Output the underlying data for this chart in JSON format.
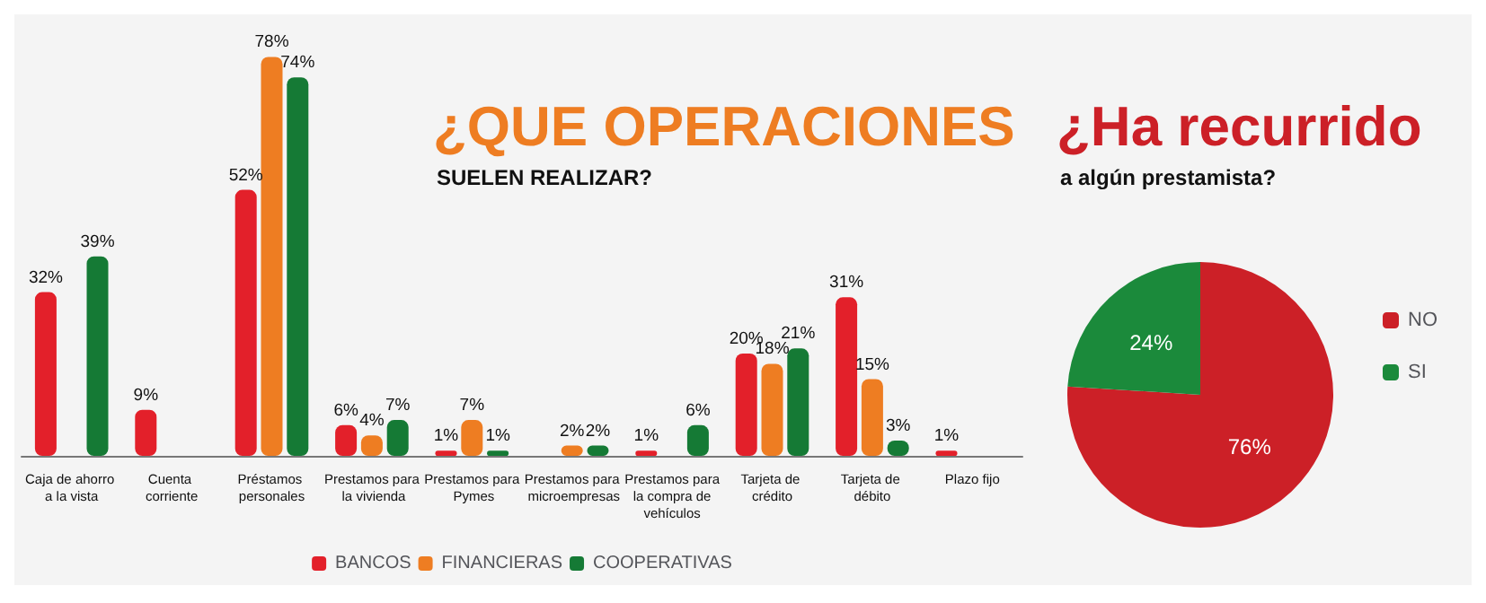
{
  "chart_data": [
    {
      "type": "bar",
      "title": "¿QUE OPERACIONES",
      "subtitle": "SUELEN REALIZAR?",
      "categories": [
        "Caja de ahorro a la vista",
        "Cuenta corriente",
        "Préstamos personales",
        "Prestamos para la vivienda",
        "Prestamos para Pymes",
        "Prestamos para microempresas",
        "Prestamos para la compra de vehículos",
        "Tarjeta de crédito",
        "Tarjeta de débito",
        "Plazo fijo"
      ],
      "series": [
        {
          "name": "BANCOS",
          "color": "#e3202a",
          "values": [
            32,
            9,
            52,
            6,
            1,
            null,
            1,
            20,
            31,
            1
          ],
          "value_labels": [
            "32%",
            "9%",
            "52%",
            "6%",
            "1%",
            null,
            "1%",
            "20%",
            "31%",
            "1%"
          ]
        },
        {
          "name": "FINANCIERAS",
          "color": "#ee7d22",
          "values": [
            null,
            null,
            78,
            4,
            7,
            2,
            null,
            18,
            15,
            null
          ],
          "value_labels": [
            null,
            null,
            "78%",
            "4%",
            "7%",
            "2%",
            null,
            "18%",
            "15%",
            null
          ]
        },
        {
          "name": "COOPERATIVAS",
          "color": "#157a35",
          "values": [
            39,
            null,
            74,
            7,
            1,
            2,
            6,
            21,
            3,
            null
          ],
          "value_labels": [
            "39%",
            null,
            "74%",
            "7%",
            "1%",
            "2%",
            "6%",
            "21%",
            "3%",
            null
          ]
        }
      ],
      "legend": "bottom"
    },
    {
      "type": "pie",
      "title": "¿Ha recurrido",
      "subtitle": "a algún prestamista?",
      "categories": [
        "NO",
        "SI"
      ],
      "values": [
        76,
        24
      ],
      "value_labels": [
        "76%",
        "24%"
      ],
      "colors": [
        "#cc2027",
        "#1b8a3b"
      ],
      "legend": "right"
    }
  ]
}
